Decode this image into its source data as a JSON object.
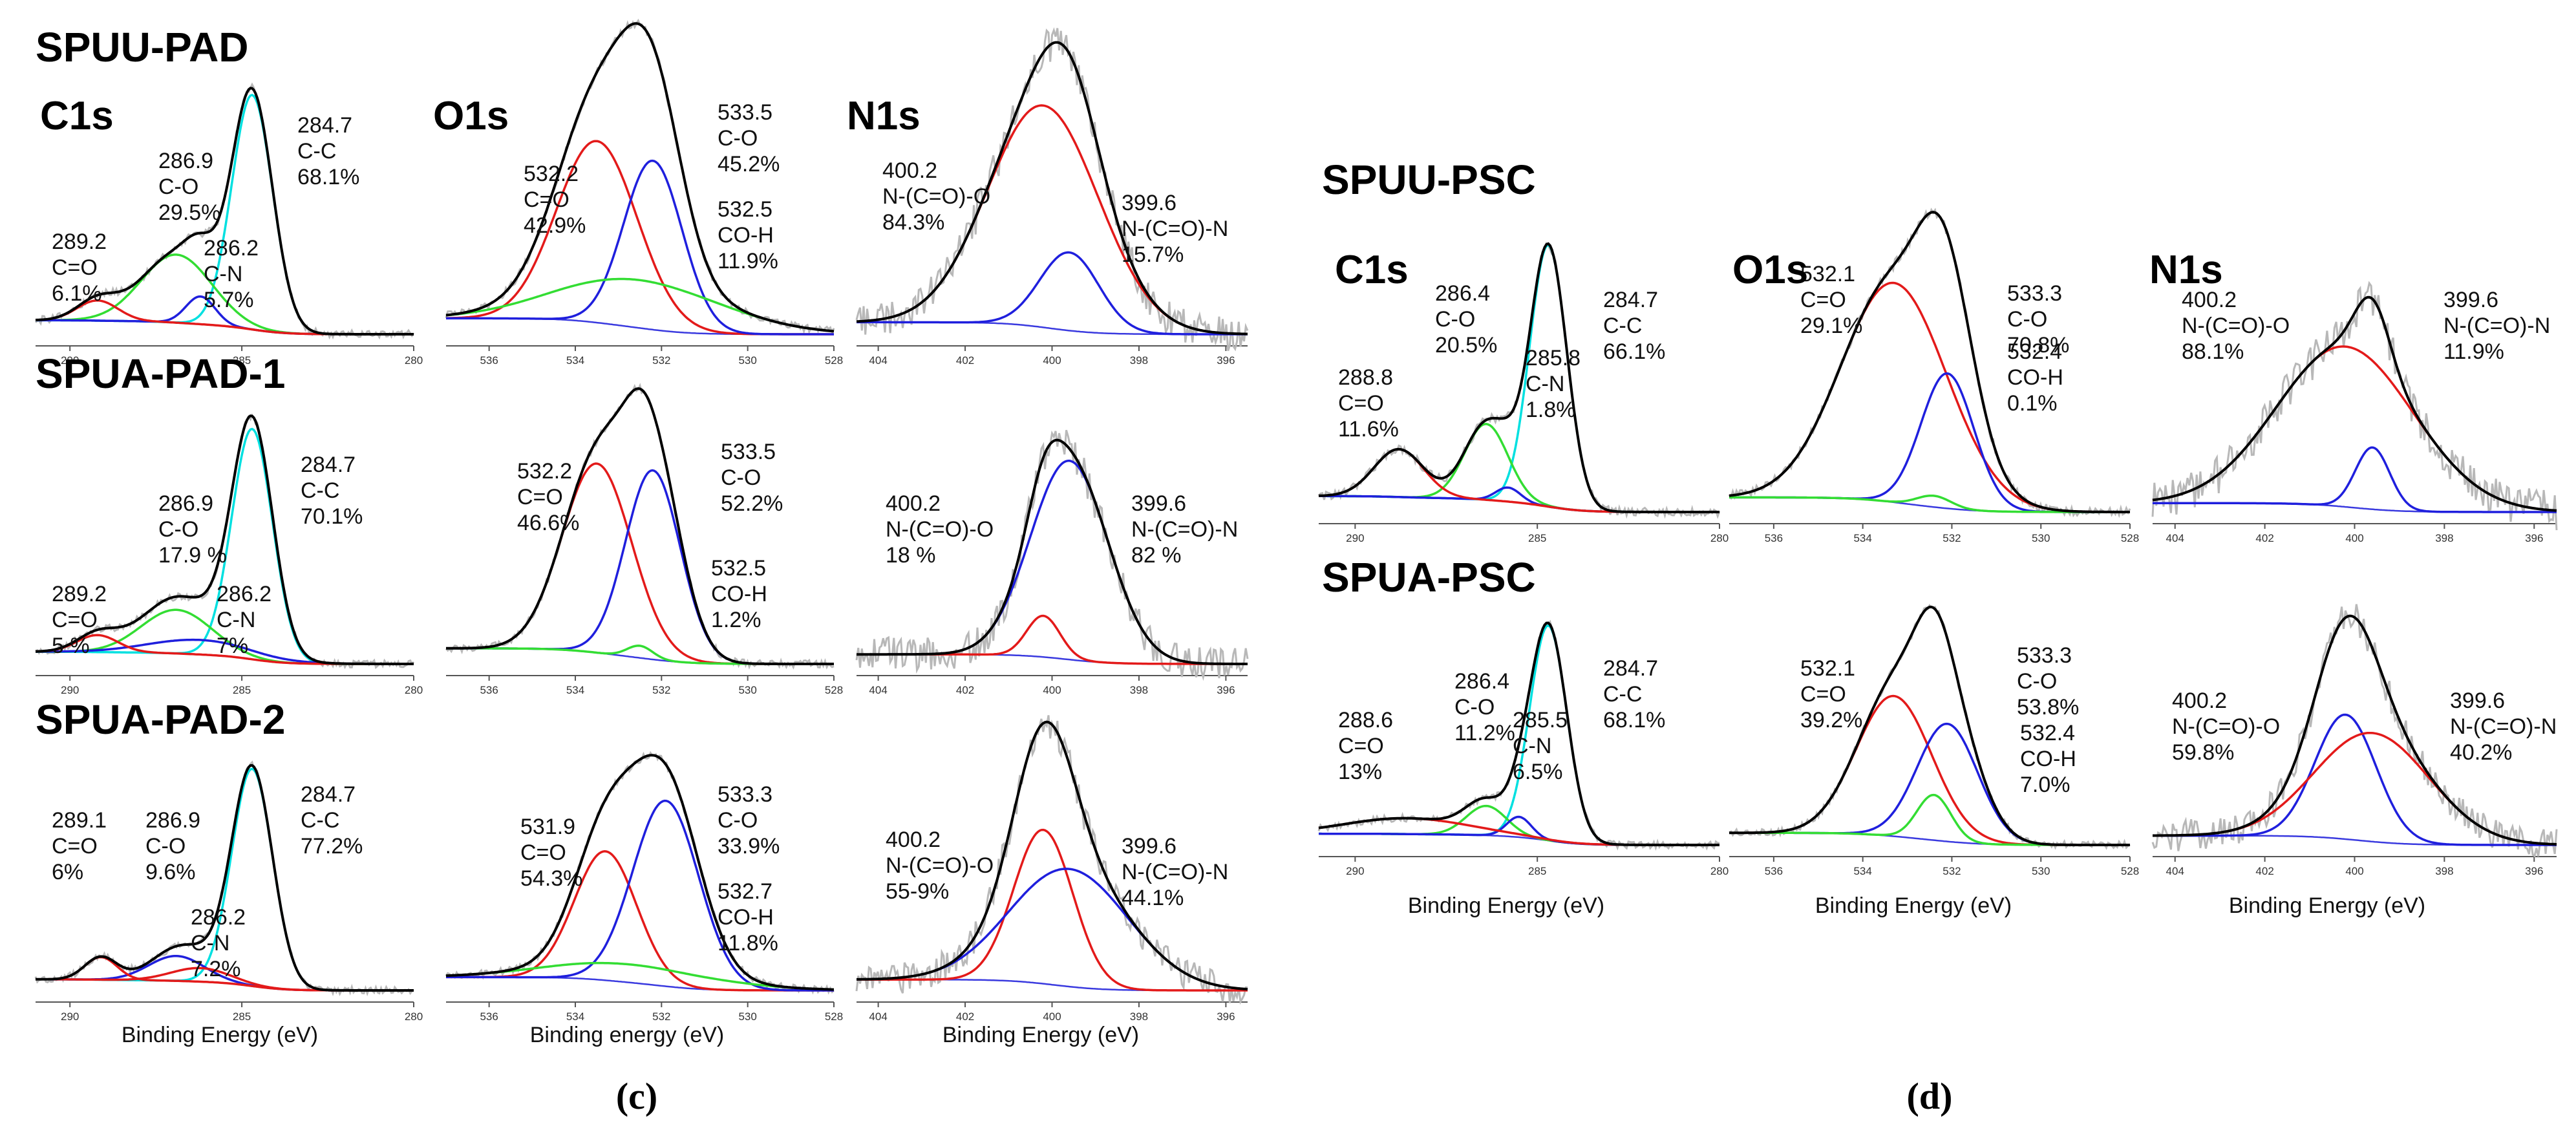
{
  "panel_labels": {
    "c": "(c)",
    "d": "(d)"
  },
  "chart_data": [
    {
      "type": "line",
      "title": "C1s",
      "sample": "SPUU-PAD",
      "xlabel": "",
      "xlim": [
        280,
        291
      ],
      "ticks": [
        290,
        285,
        280
      ],
      "reversed_x": true,
      "peaks": [
        {
          "center": 284.7,
          "assignment": "C-C",
          "percent": "68.1%",
          "color": "#00e0e0",
          "height": 0.93,
          "fwhm": 1.4
        },
        {
          "center": 286.9,
          "assignment": "C-O",
          "percent": "29.5%",
          "color": "#33dd33",
          "height": 0.27,
          "fwhm": 2.4
        },
        {
          "center": 286.2,
          "assignment": "C-N",
          "percent": "5.7%",
          "color": "#1f1fdd",
          "height": 0.11,
          "fwhm": 1.0
        },
        {
          "center": 289.2,
          "assignment": "C=O",
          "percent": "6.1%",
          "color": "#e31a1a",
          "height": 0.08,
          "fwhm": 1.4
        }
      ]
    },
    {
      "type": "line",
      "title": "O1s",
      "sample": "SPUU-PAD",
      "xlabel": "",
      "xlim": [
        528,
        537
      ],
      "ticks": [
        536,
        534,
        532,
        530,
        528
      ],
      "reversed_x": true,
      "peaks": [
        {
          "center": 533.5,
          "assignment": "C-O",
          "percent": "45.2%",
          "color": "#e31a1a",
          "height": 0.72,
          "fwhm": 2.2
        },
        {
          "center": 532.2,
          "assignment": "C=O",
          "percent": "42.9%",
          "color": "#1f1fdd",
          "height": 0.67,
          "fwhm": 1.6
        },
        {
          "center": 532.5,
          "assignment": "CO-H",
          "percent": "11.9%",
          "color": "#33dd33",
          "height": 0.19,
          "fwhm": 4.5
        }
      ]
    },
    {
      "type": "line",
      "title": "N1s",
      "sample": "SPUU-PAD",
      "xlabel": "",
      "xlim": [
        395.5,
        404.5
      ],
      "ticks": [
        404,
        402,
        400,
        398,
        396
      ],
      "reversed_x": true,
      "peaks": [
        {
          "center": 400.2,
          "assignment": "N-(C=O)-O",
          "percent": "84.3%",
          "color": "#e31a1a",
          "height": 0.88,
          "fwhm": 3.0
        },
        {
          "center": 399.6,
          "assignment": "N-(C=O)-N",
          "percent": "15.7%",
          "color": "#1f1fdd",
          "height": 0.31,
          "fwhm": 1.6
        }
      ]
    },
    {
      "type": "line",
      "title": "C1s",
      "sample": "SPUA-PAD-1",
      "xlabel": "",
      "xlim": [
        280,
        291
      ],
      "ticks": [
        290,
        285,
        280
      ],
      "reversed_x": true,
      "peaks": [
        {
          "center": 284.7,
          "assignment": "C-C",
          "percent": "70.1%",
          "color": "#00e0e0",
          "height": 0.95,
          "fwhm": 1.4
        },
        {
          "center": 286.9,
          "assignment": "C-O",
          "percent": "17.9 %",
          "color": "#33dd33",
          "height": 0.18,
          "fwhm": 2.4
        },
        {
          "center": 286.2,
          "assignment": "C-N",
          "percent": "7%",
          "color": "#1f1fdd",
          "height": 0.06,
          "fwhm": 3.5
        },
        {
          "center": 289.2,
          "assignment": "C=O",
          "percent": "5 %",
          "color": "#e31a1a",
          "height": 0.07,
          "fwhm": 1.4
        }
      ]
    },
    {
      "type": "line",
      "title": "O1s",
      "sample": "SPUA-PAD-1",
      "xlabel": "",
      "xlim": [
        528,
        537
      ],
      "ticks": [
        536,
        534,
        532,
        530,
        528
      ],
      "reversed_x": true,
      "peaks": [
        {
          "center": 533.5,
          "assignment": "C-O",
          "percent": "52.2%",
          "color": "#e31a1a",
          "height": 0.78,
          "fwhm": 1.9
        },
        {
          "center": 532.2,
          "assignment": "C=O",
          "percent": "46.6%",
          "color": "#1f1fdd",
          "height": 0.78,
          "fwhm": 1.5
        },
        {
          "center": 532.5,
          "assignment": "CO-H",
          "percent": "1.2%",
          "color": "#33dd33",
          "height": 0.05,
          "fwhm": 0.7
        }
      ]
    },
    {
      "type": "line",
      "title": "N1s",
      "sample": "SPUA-PAD-1",
      "xlabel": "",
      "xlim": [
        395.5,
        404.5
      ],
      "ticks": [
        404,
        402,
        400,
        398,
        396
      ],
      "reversed_x": true,
      "peaks": [
        {
          "center": 400.2,
          "assignment": "N-(C=O)-O",
          "percent": "18 %",
          "color": "#e31a1a",
          "height": 0.17,
          "fwhm": 0.9
        },
        {
          "center": 399.6,
          "assignment": "N-(C=O)-N",
          "percent": "82 %",
          "color": "#1f1fdd",
          "height": 0.82,
          "fwhm": 2.1
        }
      ]
    },
    {
      "type": "line",
      "title": "",
      "sample": "SPUA-PAD-2",
      "xlabel": "Binding Energy (eV)",
      "xlim": [
        280,
        291
      ],
      "ticks": [
        290,
        285,
        280
      ],
      "reversed_x": true,
      "peaks": [
        {
          "center": 284.7,
          "assignment": "C-C",
          "percent": "77.2%",
          "color": "#00e0e0",
          "height": 0.96,
          "fwhm": 1.4
        },
        {
          "center": 286.9,
          "assignment": "C-O",
          "percent": "9.6%",
          "color": "#1f1fdd",
          "height": 0.11,
          "fwhm": 1.9
        },
        {
          "center": 286.2,
          "assignment": "C-N",
          "percent": "7.2%",
          "color": "#e31a1a",
          "height": 0.06,
          "fwhm": 2.0
        },
        {
          "center": 289.1,
          "assignment": "C=O",
          "percent": "6%",
          "color": "#e31a1a",
          "height": 0.1,
          "fwhm": 1.1
        }
      ]
    },
    {
      "type": "line",
      "title": "",
      "sample": "SPUA-PAD-2",
      "xlabel": "Binding energy (eV)",
      "xlim": [
        528,
        537
      ],
      "ticks": [
        536,
        534,
        532,
        530,
        528
      ],
      "reversed_x": true,
      "peaks": [
        {
          "center": 533.3,
          "assignment": "C-O",
          "percent": "33.9%",
          "color": "#e31a1a",
          "height": 0.57,
          "fwhm": 1.7
        },
        {
          "center": 531.9,
          "assignment": "C=O",
          "percent": "54.3%",
          "color": "#1f1fdd",
          "height": 0.82,
          "fwhm": 1.8
        },
        {
          "center": 532.7,
          "assignment": "CO-H",
          "percent": "11.8%",
          "color": "#33dd33",
          "height": 0.08,
          "fwhm": 4.5
        }
      ]
    },
    {
      "type": "line",
      "title": "",
      "sample": "SPUA-PAD-2",
      "xlabel": "Binding Energy (eV)",
      "xlim": [
        395.5,
        404.5
      ],
      "ticks": [
        404,
        402,
        400,
        398,
        396
      ],
      "reversed_x": true,
      "peaks": [
        {
          "center": 400.2,
          "assignment": "N-(C=O)-O",
          "percent": "55-9%",
          "color": "#e31a1a",
          "height": 0.68,
          "fwhm": 1.6
        },
        {
          "center": 399.6,
          "assignment": "N-(C=O)-N",
          "percent": "44.1%",
          "color": "#1f1fdd",
          "height": 0.52,
          "fwhm": 3.2
        }
      ]
    },
    {
      "type": "line",
      "title": "C1s",
      "sample": "SPUU-PSC",
      "xlabel": "",
      "xlim": [
        280,
        291
      ],
      "ticks": [
        290,
        285,
        280
      ],
      "reversed_x": true,
      "peaks": [
        {
          "center": 284.7,
          "assignment": "C-C",
          "percent": "66.1%",
          "color": "#00e0e0",
          "height": 0.93,
          "fwhm": 1.2
        },
        {
          "center": 286.4,
          "assignment": "C-O",
          "percent": "20.5%",
          "color": "#33dd33",
          "height": 0.27,
          "fwhm": 1.4
        },
        {
          "center": 285.8,
          "assignment": "C-N",
          "percent": "1.8%",
          "color": "#1f1fdd",
          "height": 0.05,
          "fwhm": 0.8
        },
        {
          "center": 288.8,
          "assignment": "C=O",
          "percent": "11.6%",
          "color": "#e31a1a",
          "height": 0.17,
          "fwhm": 1.6
        }
      ]
    },
    {
      "type": "line",
      "title": "O1s",
      "sample": "SPUU-PSC",
      "xlabel": "",
      "xlim": [
        528,
        537
      ],
      "ticks": [
        536,
        534,
        532,
        530,
        528
      ],
      "reversed_x": true,
      "peaks": [
        {
          "center": 533.3,
          "assignment": "C-O",
          "percent": "70.8%",
          "color": "#e31a1a",
          "height": 0.78,
          "fwhm": 2.8
        },
        {
          "center": 532.1,
          "assignment": "C=O",
          "percent": "29.1%",
          "color": "#1f1fdd",
          "height": 0.48,
          "fwhm": 1.4
        },
        {
          "center": 532.4,
          "assignment": "CO-H",
          "percent": "0.1%",
          "color": "#33dd33",
          "height": 0.04,
          "fwhm": 0.9
        }
      ]
    },
    {
      "type": "line",
      "title": "N1s",
      "sample": "SPUU-PSC",
      "xlabel": "",
      "xlim": [
        395.5,
        404.5
      ],
      "ticks": [
        404,
        402,
        400,
        398,
        396
      ],
      "reversed_x": true,
      "peaks": [
        {
          "center": 400.2,
          "assignment": "N-(C=O)-O",
          "percent": "88.1%",
          "color": "#e31a1a",
          "height": 0.57,
          "fwhm": 3.6
        },
        {
          "center": 399.6,
          "assignment": "N-(C=O)-N",
          "percent": "11.9%",
          "color": "#1f1fdd",
          "height": 0.22,
          "fwhm": 0.9
        }
      ]
    },
    {
      "type": "line",
      "title": "",
      "sample": "SPUA-PSC",
      "xlabel": "Binding Energy (eV)",
      "xlim": [
        280,
        291
      ],
      "ticks": [
        290,
        285,
        280
      ],
      "reversed_x": true,
      "peaks": [
        {
          "center": 284.7,
          "assignment": "C-C",
          "percent": "68.1%",
          "color": "#00e0e0",
          "height": 0.95,
          "fwhm": 1.2
        },
        {
          "center": 286.4,
          "assignment": "C-O",
          "percent": "11.2%",
          "color": "#33dd33",
          "height": 0.13,
          "fwhm": 1.3
        },
        {
          "center": 285.5,
          "assignment": "C-N",
          "percent": "6.5%",
          "color": "#1f1fdd",
          "height": 0.09,
          "fwhm": 0.8
        },
        {
          "center": 288.6,
          "assignment": "C=O",
          "percent": "13%",
          "color": "#e31a1a",
          "height": 0.07,
          "fwhm": 4.0
        }
      ]
    },
    {
      "type": "line",
      "title": "",
      "sample": "SPUA-PSC",
      "xlabel": "Binding Energy (eV)",
      "xlim": [
        528,
        537
      ],
      "ticks": [
        536,
        534,
        532,
        530,
        528
      ],
      "reversed_x": true,
      "peaks": [
        {
          "center": 533.3,
          "assignment": "C-O",
          "percent": "53.8%",
          "color": "#e31a1a",
          "height": 0.62,
          "fwhm": 2.0
        },
        {
          "center": 532.1,
          "assignment": "C=O",
          "percent": "39.2%",
          "color": "#1f1fdd",
          "height": 0.52,
          "fwhm": 1.6
        },
        {
          "center": 532.4,
          "assignment": "CO-H",
          "percent": "7.0%",
          "color": "#33dd33",
          "height": 0.2,
          "fwhm": 0.9
        }
      ]
    },
    {
      "type": "line",
      "title": "N1s",
      "sample": "SPUA-PSC",
      "xlabel": "Binding Energy (eV)",
      "xlim": [
        395.5,
        404.5
      ],
      "ticks": [
        404,
        402,
        400,
        398,
        396
      ],
      "reversed_x": true,
      "peaks": [
        {
          "center": 400.2,
          "assignment": "N-(C=O)-O",
          "percent": "59.8%",
          "color": "#1f1fdd",
          "height": 0.55,
          "fwhm": 1.6
        },
        {
          "center": 399.6,
          "assignment": "N-(C=O)-N",
          "percent": "40.2%",
          "color": "#e31a1a",
          "height": 0.48,
          "fwhm": 3.0
        }
      ]
    }
  ]
}
